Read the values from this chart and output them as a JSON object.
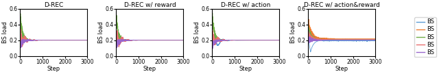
{
  "titles": [
    "D-REC",
    "D-REC w/ reward",
    "D-REC w/ action",
    "D-REC w/ action&reward"
  ],
  "ylabel": "BS load",
  "xlabel": "Step",
  "ylim": [
    0.0,
    0.6
  ],
  "xlim": [
    0,
    3000
  ],
  "yticks": [
    0.0,
    0.2,
    0.4,
    0.6
  ],
  "xticks": [
    0,
    1000,
    2000,
    3000
  ],
  "legend_labels": [
    "BS",
    "BS",
    "BS",
    "BS",
    "BS"
  ],
  "line_colors": [
    "#5b9bd5",
    "#ed7d31",
    "#70ad47",
    "#e87070",
    "#9966cc"
  ],
  "n_steps": 3000,
  "n_lines": 5,
  "steady_state": 0.2,
  "figsize": [
    6.4,
    1.08
  ],
  "dpi": 100,
  "linewidth": 0.6
}
